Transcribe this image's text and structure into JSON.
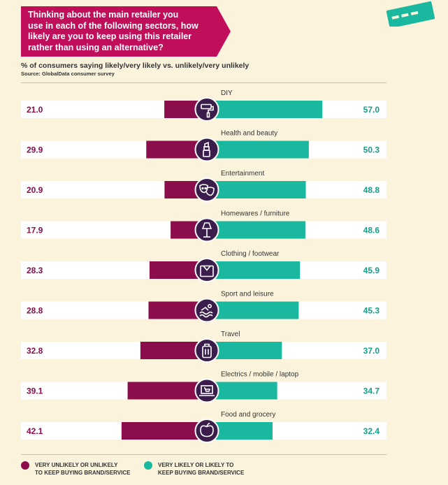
{
  "header": {
    "title": "Thinking about the main retailer you\nuse in each of the following sectors, how\nlikely are you to keep using this retailer\nrather than using an alternative?",
    "subtitle": "% of consumers saying likely/very likely vs. unlikely/very unlikely",
    "source": "Source: GlobalData consumer survey"
  },
  "colors": {
    "unlikely": "#8c0d4b",
    "likely": "#1bb8a0",
    "title_bg": "#c10e5a",
    "icon_circle": "#3a1d4b",
    "page_bg": "#fbf3dc"
  },
  "chart_data": {
    "type": "bar",
    "orientation": "horizontal-diverging",
    "categories": [
      "DIY",
      "Health and beauty",
      "Entertainment",
      "Homewares / furniture",
      "Clothing / footwear",
      "Sport and leisure",
      "Travel",
      "Electrics / mobile / laptop",
      "Food and grocery"
    ],
    "icons": [
      "paint-roller-icon",
      "lipstick-icon",
      "theatre-masks-icon",
      "floor-lamp-icon",
      "clothing-box-icon",
      "swimming-icon",
      "suitcase-icon",
      "laptop-cart-icon",
      "apple-icon"
    ],
    "series": [
      {
        "name": "VERY UNLIKELY OR UNLIKELY\nTO KEEP BUYING BRAND/SERVICE",
        "values": [
          21.0,
          29.9,
          20.9,
          17.9,
          28.3,
          28.8,
          32.8,
          39.1,
          42.1
        ],
        "labels": [
          "21.0",
          "29.9",
          "20.9",
          "17.9",
          "28.3",
          "28.8",
          "32.8",
          "39.1",
          "42.1"
        ]
      },
      {
        "name": "VERY LIKELY OR LIKELY TO\nKEEP BUYING BRAND/SERVICE",
        "values": [
          57.0,
          50.3,
          48.8,
          48.6,
          45.9,
          45.3,
          37.0,
          34.7,
          32.4
        ],
        "labels": [
          "57.0",
          "50.3",
          "48.8",
          "48.6",
          "45.9",
          "45.3",
          "37.0",
          "34.7",
          "32.4"
        ]
      }
    ]
  }
}
